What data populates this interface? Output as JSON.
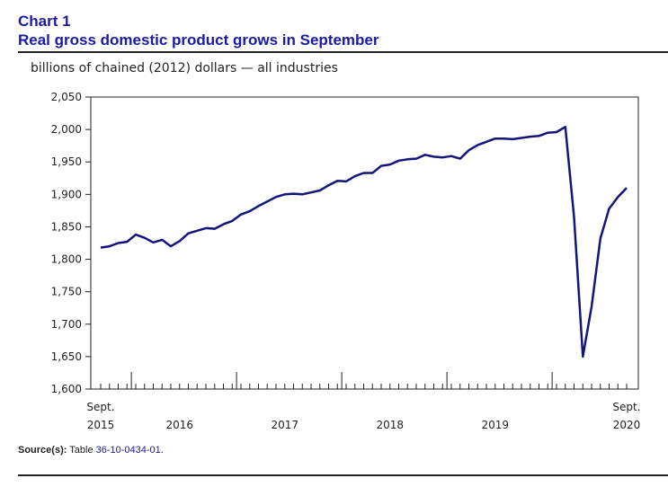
{
  "header": {
    "label": "Chart 1",
    "title": "Real gross domestic product grows in September"
  },
  "source": {
    "label": "Source(s):",
    "prefix": "Table",
    "link_text": "36-10-0434-01",
    "suffix": "."
  },
  "chart_data": {
    "type": "line",
    "title": "Real gross domestic product grows in September",
    "ylabel": "billions of chained (2012) dollars — all industries",
    "xlabel": "",
    "ylim": [
      1600,
      2050
    ],
    "yticks": [
      1600,
      1650,
      1700,
      1750,
      1800,
      1850,
      1900,
      1950,
      2000,
      2050
    ],
    "ytick_labels": [
      "1,600",
      "1,650",
      "1,700",
      "1,750",
      "1,800",
      "1,850",
      "1,900",
      "1,950",
      "2,000",
      "2,050"
    ],
    "x_start": "2015-09",
    "x_end": "2020-09",
    "x_axis_labels": [
      {
        "month": "2015-09",
        "line1": "Sept.",
        "line2": "2015"
      },
      {
        "month": "2016-06",
        "line1": "",
        "line2": "2016"
      },
      {
        "month": "2017-06",
        "line1": "",
        "line2": "2017"
      },
      {
        "month": "2018-06",
        "line1": "",
        "line2": "2018"
      },
      {
        "month": "2019-06",
        "line1": "",
        "line2": "2019"
      },
      {
        "month": "2020-09",
        "line1": "Sept.",
        "line2": "2020"
      }
    ],
    "grid": false,
    "line_color": "#14147a",
    "series": [
      {
        "x": [
          "2015-09",
          "2015-10",
          "2015-11",
          "2015-12",
          "2016-01",
          "2016-02",
          "2016-03",
          "2016-04",
          "2016-05",
          "2016-06",
          "2016-07",
          "2016-08",
          "2016-09",
          "2016-10",
          "2016-11",
          "2016-12",
          "2017-01",
          "2017-02",
          "2017-03",
          "2017-04",
          "2017-05",
          "2017-06",
          "2017-07",
          "2017-08",
          "2017-09",
          "2017-10",
          "2017-11",
          "2017-12",
          "2018-01",
          "2018-02",
          "2018-03",
          "2018-04",
          "2018-05",
          "2018-06",
          "2018-07",
          "2018-08",
          "2018-09",
          "2018-10",
          "2018-11",
          "2018-12",
          "2019-01",
          "2019-02",
          "2019-03",
          "2019-04",
          "2019-05",
          "2019-06",
          "2019-07",
          "2019-08",
          "2019-09",
          "2019-10",
          "2019-11",
          "2019-12",
          "2020-01",
          "2020-02",
          "2020-03",
          "2020-04",
          "2020-05",
          "2020-06",
          "2020-07",
          "2020-08",
          "2020-09"
        ],
        "values": [
          1818,
          1820,
          1825,
          1827,
          1838,
          1833,
          1826,
          1830,
          1820,
          1828,
          1840,
          1844,
          1848,
          1847,
          1854,
          1859,
          1869,
          1874,
          1882,
          1889,
          1896,
          1900,
          1901,
          1900,
          1903,
          1906,
          1914,
          1921,
          1920,
          1928,
          1933,
          1933,
          1944,
          1946,
          1952,
          1954,
          1955,
          1961,
          1958,
          1957,
          1959,
          1955,
          1968,
          1976,
          1981,
          1986,
          1986,
          1985,
          1987,
          1989,
          1990,
          1995,
          1996,
          2004,
          1865,
          1650,
          1727,
          1832,
          1878,
          1896,
          1910
        ]
      }
    ]
  }
}
